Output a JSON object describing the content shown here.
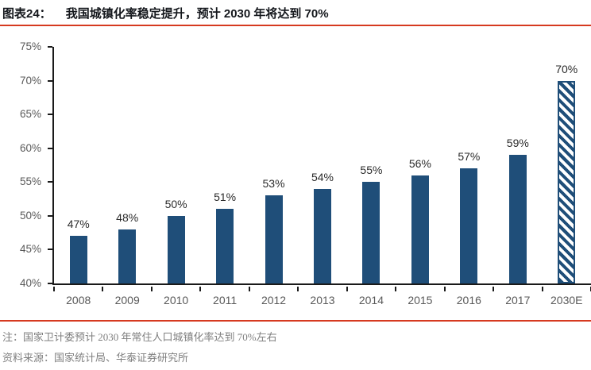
{
  "header": {
    "label": "图表24：",
    "title": "我国城镇化率稳定提升，预计 2030 年将达到 70%"
  },
  "chart_data": {
    "type": "bar",
    "title": "我国城镇化率稳定提升，预计 2030 年将达到 70%",
    "categories": [
      "2008",
      "2009",
      "2010",
      "2011",
      "2012",
      "2013",
      "2014",
      "2015",
      "2016",
      "2017",
      "2030E"
    ],
    "values": [
      47,
      48,
      50,
      51,
      53,
      54,
      55,
      56,
      57,
      59,
      70
    ],
    "value_labels": [
      "47%",
      "48%",
      "50%",
      "51%",
      "53%",
      "54%",
      "55%",
      "56%",
      "57%",
      "59%",
      "70%"
    ],
    "hatched_categories": [
      "2030E"
    ],
    "ylim": [
      40,
      75
    ],
    "yticks": [
      40,
      45,
      50,
      55,
      60,
      65,
      70,
      75
    ],
    "ytick_labels": [
      "40%",
      "45%",
      "50%",
      "55%",
      "60%",
      "65%",
      "70%",
      "75%"
    ],
    "xlabel": "",
    "ylabel": "",
    "grid": false,
    "legend": "none",
    "bar_color": "#1f4e79"
  },
  "footer": {
    "note": "注：国家卫计委预计 2030 年常住人口城镇化率达到 70%左右",
    "source": "资料来源：国家统计局、华泰证券研究所"
  },
  "colors": {
    "accent_red": "#d63a20",
    "bar_blue": "#1f4e79",
    "axis_black": "#1a1a1a",
    "tick_label_gray": "#595959",
    "note_gray": "#7f7f7f"
  }
}
